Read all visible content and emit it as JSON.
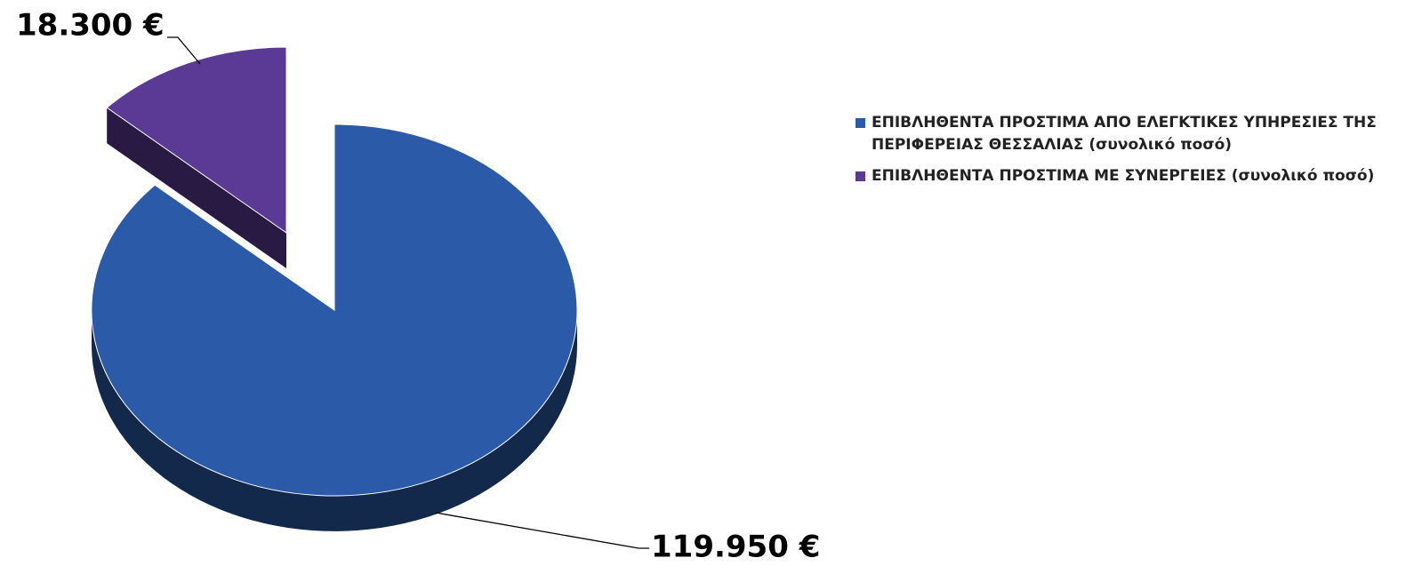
{
  "chart_data": {
    "type": "pie",
    "categories": [
      "ΕΠΙΒΛΗΘΕΝΤΑ ΠΡΟΣΤΙΜΑ ΑΠΟ ΕΛΕΓΚΤΙΚΕΣ ΥΠΗΡΕΣΙΕΣ ΤΗΣ ΠΕΡΙΦΕΡΕΙΑΣ ΘΕΣΣΑΛΙΑΣ (συνολικό ποσό)",
      "ΕΠΙΒΛΗΘΕΝΤΑ ΠΡΟΣΤΙΜΑ ΜΕ ΣΥΝΕΡΓΕΙΕΣ (συνολικό ποσό)"
    ],
    "values": [
      119950,
      18300
    ],
    "value_labels": [
      "119.950 €",
      "18.300 €"
    ],
    "colors": [
      "#2b5aa8",
      "#5b3a95"
    ],
    "legend": "right"
  }
}
